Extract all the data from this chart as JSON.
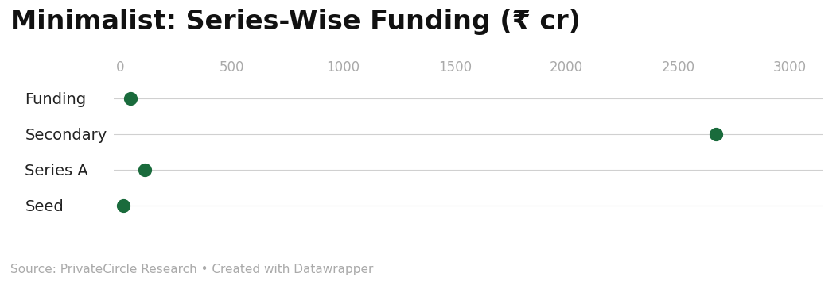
{
  "title": "Minimalist: Series-Wise Funding (₹ cr)",
  "categories": [
    "Funding",
    "Secondary",
    "Series A",
    "Seed"
  ],
  "values": [
    45,
    2670,
    110.017,
    14.3
  ],
  "dot_color": "#1a6b3c",
  "dot_size": 130,
  "xlim": [
    -30,
    3150
  ],
  "xticks": [
    0,
    500,
    1000,
    1500,
    2000,
    2500,
    3000
  ],
  "background_color": "#ffffff",
  "grid_color": "#d0d0d0",
  "axis_label_color": "#aaaaaa",
  "title_fontsize": 24,
  "tick_fontsize": 12,
  "category_fontsize": 14,
  "source_text": "Source: PrivateCircle Research • Created with Datawrapper",
  "source_fontsize": 11,
  "source_color": "#aaaaaa",
  "category_color": "#222222"
}
